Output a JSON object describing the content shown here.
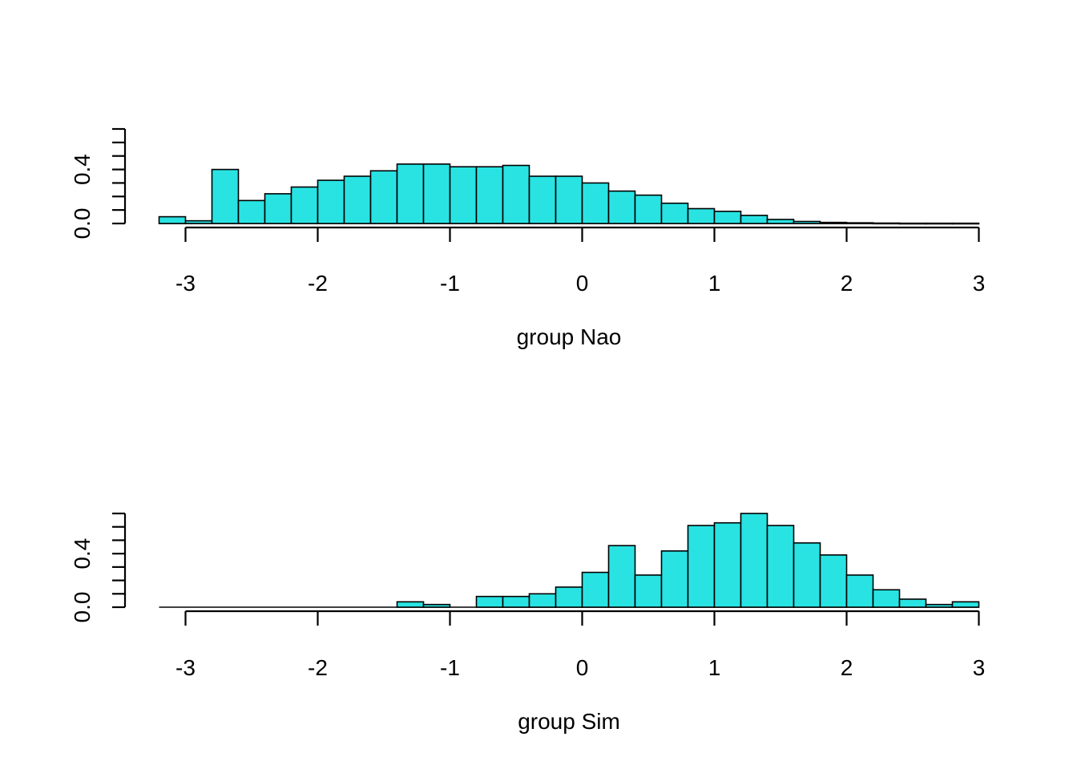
{
  "chart_data": [
    {
      "type": "bar",
      "subtype": "histogram",
      "xlabel": "group Nao",
      "ylabel": "",
      "bar_color": "#29E3E3",
      "border_color": "#000000",
      "xlim": [
        -3.2,
        3.0
      ],
      "ylim": [
        0,
        0.7
      ],
      "x_ticks": [
        -3,
        -2,
        -1,
        0,
        1,
        2,
        3
      ],
      "y_ticks": [
        0.0,
        0.1,
        0.2,
        0.3,
        0.4,
        0.5,
        0.6,
        0.7
      ],
      "y_tick_labels": [
        {
          "value": 0.0,
          "label": "0.0"
        },
        {
          "value": 0.4,
          "label": "0.4"
        }
      ],
      "bin_width": 0.2,
      "bin_starts": [
        -3.2,
        -3.0,
        -2.8,
        -2.6,
        -2.4,
        -2.2,
        -2.0,
        -1.8,
        -1.6,
        -1.4,
        -1.2,
        -1.0,
        -0.8,
        -0.6,
        -0.4,
        -0.2,
        0.0,
        0.2,
        0.4,
        0.6,
        0.8,
        1.0,
        1.2,
        1.4,
        1.6,
        1.8,
        2.0,
        2.2,
        2.4,
        2.6,
        2.8
      ],
      "values": [
        0.05,
        0.02,
        0.4,
        0.17,
        0.22,
        0.27,
        0.32,
        0.35,
        0.39,
        0.44,
        0.44,
        0.42,
        0.42,
        0.43,
        0.35,
        0.35,
        0.3,
        0.24,
        0.21,
        0.15,
        0.11,
        0.09,
        0.06,
        0.03,
        0.015,
        0.008,
        0.005,
        0.003,
        0.002,
        0.002,
        0.002
      ]
    },
    {
      "type": "bar",
      "subtype": "histogram",
      "xlabel": "group Sim",
      "ylabel": "",
      "bar_color": "#29E3E3",
      "border_color": "#000000",
      "xlim": [
        -3.2,
        3.0
      ],
      "ylim": [
        0,
        0.7
      ],
      "x_ticks": [
        -3,
        -2,
        -1,
        0,
        1,
        2,
        3
      ],
      "y_ticks": [
        0.0,
        0.1,
        0.2,
        0.3,
        0.4,
        0.5,
        0.6,
        0.7
      ],
      "y_tick_labels": [
        {
          "value": 0.0,
          "label": "0.0"
        },
        {
          "value": 0.4,
          "label": "0.4"
        }
      ],
      "bin_width": 0.2,
      "bin_starts": [
        -3.2,
        -3.0,
        -2.8,
        -2.6,
        -2.4,
        -2.2,
        -2.0,
        -1.8,
        -1.6,
        -1.4,
        -1.2,
        -1.0,
        -0.8,
        -0.6,
        -0.4,
        -0.2,
        0.0,
        0.2,
        0.4,
        0.6,
        0.8,
        1.0,
        1.2,
        1.4,
        1.6,
        1.8,
        2.0,
        2.2,
        2.4,
        2.6,
        2.8
      ],
      "values": [
        0,
        0,
        0,
        0,
        0,
        0,
        0,
        0,
        0,
        0.04,
        0.02,
        0,
        0.08,
        0.08,
        0.1,
        0.15,
        0.26,
        0.46,
        0.24,
        0.42,
        0.61,
        0.63,
        0.7,
        0.61,
        0.48,
        0.39,
        0.24,
        0.13,
        0.06,
        0.02,
        0.04
      ]
    }
  ]
}
